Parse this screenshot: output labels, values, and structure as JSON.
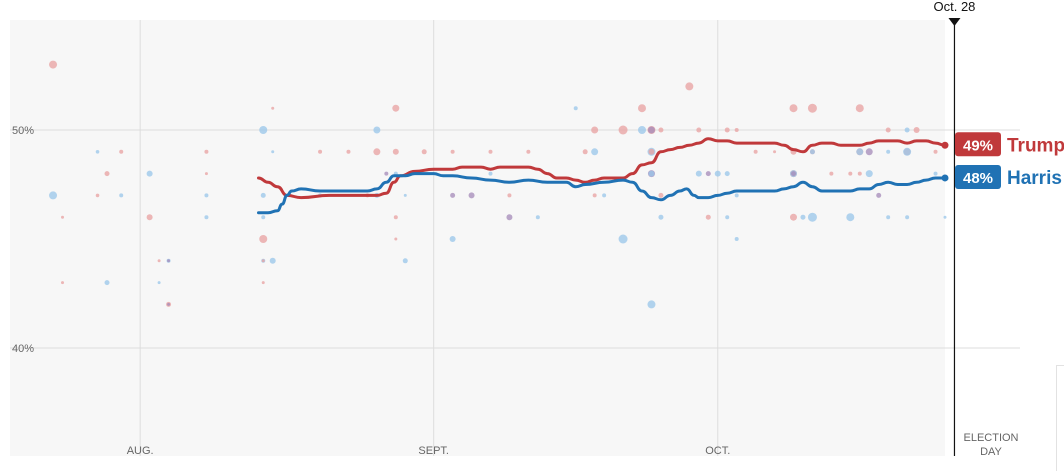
{
  "chart_data": {
    "type": "line",
    "title": "",
    "xlabel": "",
    "ylabel": "",
    "x_domain": [
      0,
      96
    ],
    "ylim": [
      35,
      55
    ],
    "y_ticks": [
      {
        "value": 40,
        "label": "40%"
      },
      {
        "value": 50,
        "label": "50%"
      }
    ],
    "x_ticks": [
      {
        "x": 11,
        "label": "AUG."
      },
      {
        "x": 42,
        "label": "SEPT."
      },
      {
        "x": 72,
        "label": "OCT."
      }
    ],
    "election_day": {
      "x": 99,
      "label_line1": "ELECTION",
      "label_line2": "DAY"
    },
    "current_date": {
      "x": 97,
      "label": "Oct. 28"
    },
    "colors": {
      "trump": "#c0393b",
      "harris": "#2072b4",
      "grid": "#dddddd",
      "background": "#f7f7f7"
    },
    "series": [
      {
        "name": "Trump",
        "key": "trump",
        "final_label": "49%",
        "points": [
          [
            23.5,
            47.8
          ],
          [
            24.5,
            47.6
          ],
          [
            25.5,
            47.4
          ],
          [
            26.5,
            47.0
          ],
          [
            28,
            46.9
          ],
          [
            31,
            47.0
          ],
          [
            34,
            47.0
          ],
          [
            36,
            47.0
          ],
          [
            37,
            47.1
          ],
          [
            37.8,
            47.6
          ],
          [
            38.5,
            47.9
          ],
          [
            40,
            48.1
          ],
          [
            42,
            48.2
          ],
          [
            44,
            48.2
          ],
          [
            45,
            48.3
          ],
          [
            46,
            48.3
          ],
          [
            47,
            48.3
          ],
          [
            48,
            48.2
          ],
          [
            49,
            48.3
          ],
          [
            50,
            48.3
          ],
          [
            51,
            48.3
          ],
          [
            52,
            48.3
          ],
          [
            53,
            48.2
          ],
          [
            54,
            48.0
          ],
          [
            55,
            47.8
          ],
          [
            56,
            47.8
          ],
          [
            57,
            47.7
          ],
          [
            58,
            47.6
          ],
          [
            59,
            47.7
          ],
          [
            60,
            47.8
          ],
          [
            61,
            47.8
          ],
          [
            62,
            47.8
          ],
          [
            63,
            48.0
          ],
          [
            64,
            48.4
          ],
          [
            65,
            48.5
          ],
          [
            66,
            49.0
          ],
          [
            67,
            49.1
          ],
          [
            68,
            49.2
          ],
          [
            69,
            49.3
          ],
          [
            70,
            49.4
          ],
          [
            71,
            49.6
          ],
          [
            72,
            49.5
          ],
          [
            73,
            49.5
          ],
          [
            74,
            49.4
          ],
          [
            76,
            49.4
          ],
          [
            78,
            49.4
          ],
          [
            79,
            49.3
          ],
          [
            80,
            49.1
          ],
          [
            81,
            49.0
          ],
          [
            82,
            49.3
          ],
          [
            83,
            49.4
          ],
          [
            84,
            49.4
          ],
          [
            85,
            49.3
          ],
          [
            86,
            49.3
          ],
          [
            87,
            49.3
          ],
          [
            88,
            49.4
          ],
          [
            89,
            49.5
          ],
          [
            90,
            49.5
          ],
          [
            91,
            49.5
          ],
          [
            92,
            49.4
          ],
          [
            93,
            49.5
          ],
          [
            94,
            49.5
          ],
          [
            95,
            49.4
          ],
          [
            96,
            49.3
          ]
        ]
      },
      {
        "name": "Harris",
        "key": "harris",
        "final_label": "48%",
        "points": [
          [
            23.5,
            46.2
          ],
          [
            24.5,
            46.2
          ],
          [
            25.5,
            46.3
          ],
          [
            26,
            46.6
          ],
          [
            26.5,
            47.0
          ],
          [
            27,
            47.2
          ],
          [
            28,
            47.3
          ],
          [
            30,
            47.2
          ],
          [
            32,
            47.2
          ],
          [
            34,
            47.2
          ],
          [
            35,
            47.2
          ],
          [
            36,
            47.3
          ],
          [
            37,
            47.6
          ],
          [
            37.8,
            47.9
          ],
          [
            39,
            47.9
          ],
          [
            40,
            48.0
          ],
          [
            42,
            48.0
          ],
          [
            43,
            47.9
          ],
          [
            44,
            47.9
          ],
          [
            46,
            47.8
          ],
          [
            48,
            47.7
          ],
          [
            50,
            47.6
          ],
          [
            52,
            47.7
          ],
          [
            54,
            47.6
          ],
          [
            56,
            47.6
          ],
          [
            57,
            47.4
          ],
          [
            58,
            47.5
          ],
          [
            60,
            47.6
          ],
          [
            62,
            47.7
          ],
          [
            63,
            47.6
          ],
          [
            64,
            47.2
          ],
          [
            65,
            46.9
          ],
          [
            66,
            46.8
          ],
          [
            67,
            47.0
          ],
          [
            68,
            47.2
          ],
          [
            68.7,
            47.3
          ],
          [
            69.5,
            47.0
          ],
          [
            70,
            46.9
          ],
          [
            71,
            46.9
          ],
          [
            72,
            47.0
          ],
          [
            73,
            47.1
          ],
          [
            74,
            47.2
          ],
          [
            75,
            47.2
          ],
          [
            76,
            47.2
          ],
          [
            77,
            47.2
          ],
          [
            78,
            47.2
          ],
          [
            79,
            47.3
          ],
          [
            80,
            47.4
          ],
          [
            81,
            47.6
          ],
          [
            82,
            47.4
          ],
          [
            83,
            47.2
          ],
          [
            84,
            47.2
          ],
          [
            85,
            47.2
          ],
          [
            86,
            47.2
          ],
          [
            87,
            47.3
          ],
          [
            88,
            47.3
          ],
          [
            89,
            47.5
          ],
          [
            90,
            47.6
          ],
          [
            91,
            47.5
          ],
          [
            92,
            47.5
          ],
          [
            93,
            47.6
          ],
          [
            94,
            47.7
          ],
          [
            95,
            47.8
          ],
          [
            96,
            47.8
          ]
        ]
      }
    ],
    "polls": [
      {
        "c": "r",
        "x": 1.8,
        "y": 53,
        "s": 4
      },
      {
        "c": "b",
        "x": 1.8,
        "y": 47,
        "s": 4
      },
      {
        "c": "r",
        "x": 2.8,
        "y": 46,
        "s": 1.5
      },
      {
        "c": "r",
        "x": 2.8,
        "y": 43,
        "s": 1.5
      },
      {
        "c": "b",
        "x": 6.5,
        "y": 49,
        "s": 1.8
      },
      {
        "c": "r",
        "x": 6.5,
        "y": 47,
        "s": 1.8
      },
      {
        "c": "r",
        "x": 7.5,
        "y": 48,
        "s": 2.5
      },
      {
        "c": "b",
        "x": 7.5,
        "y": 43,
        "s": 2.5
      },
      {
        "c": "r",
        "x": 9,
        "y": 49,
        "s": 2
      },
      {
        "c": "b",
        "x": 9,
        "y": 47,
        "s": 2
      },
      {
        "c": "b",
        "x": 12,
        "y": 48,
        "s": 3
      },
      {
        "c": "r",
        "x": 12,
        "y": 46,
        "s": 3
      },
      {
        "c": "r",
        "x": 13,
        "y": 44,
        "s": 1.5
      },
      {
        "c": "b",
        "x": 13,
        "y": 43,
        "s": 1.5
      },
      {
        "c": "b",
        "x": 14,
        "y": 44,
        "s": 2
      },
      {
        "c": "p",
        "x": 14,
        "y": 44,
        "s": 1.5
      },
      {
        "c": "r",
        "x": 14,
        "y": 42,
        "s": 2.5
      },
      {
        "c": "p",
        "x": 14,
        "y": 42,
        "s": 1.5
      },
      {
        "c": "r",
        "x": 18,
        "y": 49,
        "s": 2
      },
      {
        "c": "b",
        "x": 18,
        "y": 47,
        "s": 2
      },
      {
        "c": "b",
        "x": 18,
        "y": 46,
        "s": 2
      },
      {
        "c": "r",
        "x": 18,
        "y": 48,
        "s": 1.5
      },
      {
        "c": "r",
        "x": 25,
        "y": 51,
        "s": 1.5
      },
      {
        "c": "b",
        "x": 25,
        "y": 49,
        "s": 1.5
      },
      {
        "c": "b",
        "x": 24,
        "y": 50,
        "s": 4
      },
      {
        "c": "b",
        "x": 24,
        "y": 47,
        "s": 2.5
      },
      {
        "c": "b",
        "x": 24,
        "y": 46,
        "s": 2
      },
      {
        "c": "r",
        "x": 24,
        "y": 45,
        "s": 4
      },
      {
        "c": "b",
        "x": 24,
        "y": 44,
        "s": 2
      },
      {
        "c": "r",
        "x": 24,
        "y": 44,
        "s": 1.5
      },
      {
        "c": "b",
        "x": 25,
        "y": 44,
        "s": 3
      },
      {
        "c": "r",
        "x": 24,
        "y": 43,
        "s": 1.5
      },
      {
        "c": "r",
        "x": 30,
        "y": 49,
        "s": 2
      },
      {
        "c": "b",
        "x": 30,
        "y": 47,
        "s": 2
      },
      {
        "c": "r",
        "x": 33,
        "y": 49,
        "s": 2
      },
      {
        "c": "r",
        "x": 35,
        "y": 47,
        "s": 2
      },
      {
        "c": "b",
        "x": 36,
        "y": 50,
        "s": 3.5
      },
      {
        "c": "r",
        "x": 36,
        "y": 49,
        "s": 3.5
      },
      {
        "c": "b",
        "x": 36,
        "y": 47,
        "s": 2.5
      },
      {
        "c": "p",
        "x": 37,
        "y": 48,
        "s": 2
      },
      {
        "c": "r",
        "x": 38,
        "y": 51,
        "s": 3.5
      },
      {
        "c": "r",
        "x": 38,
        "y": 49,
        "s": 3
      },
      {
        "c": "b",
        "x": 38,
        "y": 48,
        "s": 2
      },
      {
        "c": "r",
        "x": 38,
        "y": 46,
        "s": 2
      },
      {
        "c": "r",
        "x": 38,
        "y": 45,
        "s": 1.5
      },
      {
        "c": "b",
        "x": 39,
        "y": 44,
        "s": 2.5
      },
      {
        "c": "b",
        "x": 39,
        "y": 47,
        "s": 1.5
      },
      {
        "c": "r",
        "x": 41,
        "y": 49,
        "s": 2.5
      },
      {
        "c": "p",
        "x": 44,
        "y": 47,
        "s": 2.5
      },
      {
        "c": "r",
        "x": 44,
        "y": 49,
        "s": 2
      },
      {
        "c": "b",
        "x": 44,
        "y": 45,
        "s": 3
      },
      {
        "c": "p",
        "x": 46,
        "y": 47,
        "s": 3
      },
      {
        "c": "b",
        "x": 48,
        "y": 48,
        "s": 2
      },
      {
        "c": "r",
        "x": 48,
        "y": 49,
        "s": 2
      },
      {
        "c": "r",
        "x": 50,
        "y": 47,
        "s": 2
      },
      {
        "c": "p",
        "x": 50,
        "y": 46,
        "s": 3
      },
      {
        "c": "r",
        "x": 52,
        "y": 49,
        "s": 2
      },
      {
        "c": "b",
        "x": 53,
        "y": 46,
        "s": 2
      },
      {
        "c": "b",
        "x": 57,
        "y": 51,
        "s": 2
      },
      {
        "c": "r",
        "x": 58,
        "y": 49,
        "s": 2.5
      },
      {
        "c": "r",
        "x": 59,
        "y": 50,
        "s": 3.5
      },
      {
        "c": "b",
        "x": 59,
        "y": 49,
        "s": 3.5
      },
      {
        "c": "r",
        "x": 59,
        "y": 47,
        "s": 2
      },
      {
        "c": "b",
        "x": 60,
        "y": 47,
        "s": 2
      },
      {
        "c": "b",
        "x": 62,
        "y": 45,
        "s": 4.5
      },
      {
        "c": "r",
        "x": 62,
        "y": 50,
        "s": 4.5
      },
      {
        "c": "r",
        "x": 64,
        "y": 51,
        "s": 4
      },
      {
        "c": "b",
        "x": 64,
        "y": 50,
        "s": 4
      },
      {
        "c": "r",
        "x": 65,
        "y": 50,
        "s": 4
      },
      {
        "c": "p",
        "x": 65,
        "y": 50,
        "s": 3.5
      },
      {
        "c": "b",
        "x": 65,
        "y": 49,
        "s": 4
      },
      {
        "c": "r",
        "x": 65,
        "y": 49,
        "s": 3
      },
      {
        "c": "p",
        "x": 65,
        "y": 48,
        "s": 3.5
      },
      {
        "c": "b",
        "x": 65,
        "y": 48,
        "s": 3
      },
      {
        "c": "r",
        "x": 66,
        "y": 47,
        "s": 2.5
      },
      {
        "c": "b",
        "x": 66,
        "y": 46,
        "s": 2.5
      },
      {
        "c": "b",
        "x": 65,
        "y": 42,
        "s": 4
      },
      {
        "c": "r",
        "x": 66,
        "y": 50,
        "s": 2.5
      },
      {
        "c": "r",
        "x": 69,
        "y": 52,
        "s": 4
      },
      {
        "c": "r",
        "x": 70,
        "y": 50,
        "s": 2.5
      },
      {
        "c": "b",
        "x": 70,
        "y": 48,
        "s": 3
      },
      {
        "c": "p",
        "x": 71,
        "y": 48,
        "s": 2.5
      },
      {
        "c": "r",
        "x": 71,
        "y": 46,
        "s": 2.5
      },
      {
        "c": "b",
        "x": 72,
        "y": 48,
        "s": 3
      },
      {
        "c": "b",
        "x": 73,
        "y": 48,
        "s": 2.5
      },
      {
        "c": "r",
        "x": 73,
        "y": 50,
        "s": 2.5
      },
      {
        "c": "b",
        "x": 73,
        "y": 46,
        "s": 2
      },
      {
        "c": "r",
        "x": 74,
        "y": 50,
        "s": 2
      },
      {
        "c": "b",
        "x": 74,
        "y": 47,
        "s": 2
      },
      {
        "c": "b",
        "x": 74,
        "y": 45,
        "s": 2
      },
      {
        "c": "r",
        "x": 76,
        "y": 49,
        "s": 2
      },
      {
        "c": "r",
        "x": 78,
        "y": 49,
        "s": 1.5
      },
      {
        "c": "r",
        "x": 80,
        "y": 51,
        "s": 4
      },
      {
        "c": "r",
        "x": 80,
        "y": 49,
        "s": 3
      },
      {
        "c": "r",
        "x": 80,
        "y": 48,
        "s": 3.5
      },
      {
        "c": "b",
        "x": 80,
        "y": 48,
        "s": 3.5
      },
      {
        "c": "p",
        "x": 80,
        "y": 48,
        "s": 2.5
      },
      {
        "c": "r",
        "x": 80,
        "y": 46,
        "s": 3.5
      },
      {
        "c": "b",
        "x": 81,
        "y": 46,
        "s": 2.5
      },
      {
        "c": "b",
        "x": 82,
        "y": 46,
        "s": 4.5
      },
      {
        "c": "r",
        "x": 82,
        "y": 51,
        "s": 4.5
      },
      {
        "c": "r",
        "x": 82,
        "y": 49,
        "s": 2.5
      },
      {
        "c": "b",
        "x": 82,
        "y": 49,
        "s": 2.5
      },
      {
        "c": "r",
        "x": 84,
        "y": 48,
        "s": 2
      },
      {
        "c": "r",
        "x": 86,
        "y": 48,
        "s": 2
      },
      {
        "c": "r",
        "x": 87,
        "y": 48,
        "s": 2
      },
      {
        "c": "b",
        "x": 86,
        "y": 46,
        "s": 4
      },
      {
        "c": "r",
        "x": 87,
        "y": 51,
        "s": 4
      },
      {
        "c": "r",
        "x": 87,
        "y": 49,
        "s": 3.5
      },
      {
        "c": "b",
        "x": 87,
        "y": 49,
        "s": 3.5
      },
      {
        "c": "b",
        "x": 88,
        "y": 48,
        "s": 3.5
      },
      {
        "c": "p",
        "x": 88,
        "y": 49,
        "s": 3.5
      },
      {
        "c": "p",
        "x": 89,
        "y": 47,
        "s": 2.5
      },
      {
        "c": "r",
        "x": 90,
        "y": 50,
        "s": 2.5
      },
      {
        "c": "b",
        "x": 90,
        "y": 49,
        "s": 2
      },
      {
        "c": "b",
        "x": 90,
        "y": 46,
        "s": 2
      },
      {
        "c": "b",
        "x": 92,
        "y": 50,
        "s": 2.5
      },
      {
        "c": "r",
        "x": 92,
        "y": 49,
        "s": 3.5
      },
      {
        "c": "b",
        "x": 92,
        "y": 49,
        "s": 4
      },
      {
        "c": "b",
        "x": 92,
        "y": 46,
        "s": 2
      },
      {
        "c": "r",
        "x": 93,
        "y": 50,
        "s": 3
      },
      {
        "c": "b",
        "x": 95,
        "y": 48,
        "s": 2
      },
      {
        "c": "r",
        "x": 95,
        "y": 49,
        "s": 2
      },
      {
        "c": "b",
        "x": 96,
        "y": 46,
        "s": 1.5
      }
    ]
  }
}
